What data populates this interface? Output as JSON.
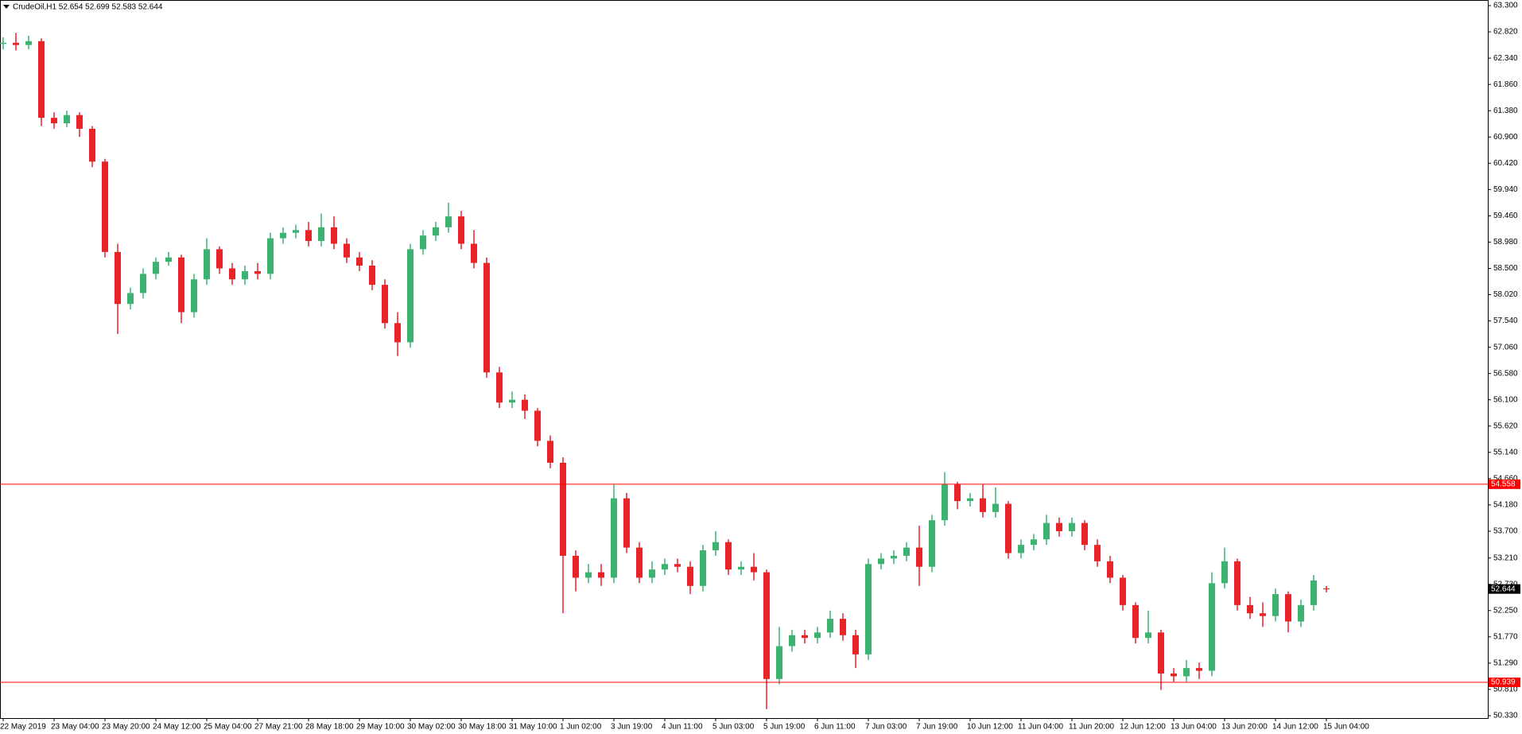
{
  "chart_data": {
    "type": "candlestick",
    "title": "CrudeOil,H1  52.654 52.699 52.583 52.644",
    "up_color": "#3cb371",
    "down_color": "#e8232a",
    "categories": [
      "22 May 2019",
      null,
      null,
      null,
      "23 May 04:00",
      null,
      null,
      null,
      "23 May 20:00",
      null,
      null,
      null,
      "24 May 12:00",
      null,
      null,
      null,
      "25 May 04:00",
      null,
      null,
      null,
      "27 May 21:00",
      null,
      null,
      null,
      "28 May 18:00",
      null,
      null,
      null,
      "29 May 10:00",
      null,
      null,
      null,
      "30 May 02:00",
      null,
      null,
      null,
      "30 May 18:00",
      null,
      null,
      null,
      "31 May 10:00",
      null,
      null,
      null,
      "1 Jun 02:00",
      null,
      null,
      null,
      "3 Jun 19:00",
      null,
      null,
      null,
      "4 Jun 11:00",
      null,
      null,
      null,
      "5 Jun 03:00",
      null,
      null,
      null,
      "5 Jun 19:00",
      null,
      null,
      null,
      "6 Jun 11:00",
      null,
      null,
      null,
      "7 Jun 03:00",
      null,
      null,
      null,
      "7 Jun 19:00",
      null,
      null,
      null,
      "10 Jun 12:00",
      null,
      null,
      null,
      "11 Jun 04:00",
      null,
      null,
      null,
      "11 Jun 20:00",
      null,
      null,
      null,
      "12 Jun 12:00",
      null,
      null,
      null,
      "13 Jun 04:00",
      null,
      null,
      null,
      "13 Jun 20:00",
      null,
      null,
      null,
      "14 Jun 12:00",
      null,
      null,
      null,
      "15 Jun 04:00"
    ],
    "open": [
      62.6,
      62.62,
      62.58,
      62.65,
      61.25,
      61.15,
      61.3,
      61.05,
      60.45,
      58.8,
      57.85,
      58.05,
      58.4,
      58.62,
      58.7,
      57.7,
      58.3,
      58.85,
      58.5,
      58.3,
      58.45,
      58.4,
      59.05,
      59.15,
      59.2,
      59.0,
      59.25,
      58.95,
      58.7,
      58.55,
      58.2,
      57.5,
      57.15,
      58.85,
      59.1,
      59.25,
      59.45,
      58.95,
      58.6,
      56.6,
      56.05,
      56.1,
      55.9,
      55.35,
      54.95,
      53.25,
      52.85,
      52.95,
      52.85,
      54.3,
      53.4,
      52.85,
      53.0,
      53.1,
      53.05,
      52.7,
      53.35,
      53.5,
      53.0,
      53.05,
      52.95,
      51.0,
      51.6,
      51.8,
      51.75,
      51.85,
      52.1,
      51.8,
      51.45,
      53.1,
      53.2,
      53.25,
      53.4,
      53.05,
      53.9,
      54.55,
      54.25,
      54.3,
      54.05,
      54.2,
      53.3,
      53.45,
      53.55,
      53.85,
      53.7,
      53.85,
      53.45,
      53.15,
      52.85,
      52.35,
      51.75,
      51.85,
      51.1,
      51.05,
      51.2,
      51.15,
      52.75,
      53.15,
      52.35,
      52.2,
      52.15,
      52.55,
      52.05,
      52.35,
      52.654
    ],
    "high": [
      62.72,
      62.8,
      62.75,
      62.7,
      61.35,
      61.38,
      61.35,
      61.1,
      60.5,
      58.95,
      58.15,
      58.5,
      58.7,
      58.8,
      58.75,
      58.4,
      59.05,
      58.9,
      58.6,
      58.55,
      58.6,
      59.15,
      59.25,
      59.3,
      59.35,
      59.5,
      59.45,
      59.05,
      58.8,
      58.65,
      58.3,
      57.7,
      58.95,
      59.2,
      59.35,
      59.7,
      59.55,
      59.2,
      58.7,
      56.7,
      56.25,
      56.2,
      55.95,
      55.45,
      55.05,
      53.35,
      53.1,
      53.1,
      54.55,
      54.4,
      53.5,
      53.15,
      53.2,
      53.2,
      53.15,
      53.45,
      53.7,
      53.55,
      53.15,
      53.3,
      53.0,
      51.95,
      51.9,
      51.9,
      51.95,
      52.25,
      52.2,
      51.9,
      53.2,
      53.3,
      53.35,
      53.5,
      53.8,
      54.0,
      54.78,
      54.6,
      54.4,
      54.55,
      54.5,
      54.25,
      53.55,
      53.65,
      54.0,
      53.95,
      53.95,
      53.9,
      53.55,
      53.25,
      52.9,
      52.4,
      52.25,
      51.9,
      51.2,
      51.35,
      51.3,
      52.95,
      53.4,
      53.2,
      52.5,
      52.4,
      52.65,
      52.6,
      52.45,
      52.9,
      52.699
    ],
    "low": [
      62.5,
      62.48,
      62.5,
      61.1,
      61.05,
      61.08,
      60.9,
      60.35,
      58.7,
      57.3,
      57.75,
      57.95,
      58.3,
      58.55,
      57.5,
      57.6,
      58.2,
      58.4,
      58.2,
      58.2,
      58.3,
      58.3,
      58.95,
      59.05,
      58.9,
      58.9,
      58.85,
      58.6,
      58.45,
      58.1,
      57.4,
      56.9,
      57.05,
      58.75,
      59.0,
      59.15,
      58.85,
      58.5,
      56.5,
      55.95,
      55.95,
      55.75,
      55.25,
      54.85,
      52.2,
      52.6,
      52.75,
      52.7,
      52.75,
      53.3,
      52.75,
      52.75,
      52.9,
      52.95,
      52.55,
      52.6,
      53.25,
      52.9,
      52.9,
      52.8,
      50.45,
      50.9,
      51.5,
      51.65,
      51.65,
      51.75,
      51.7,
      51.2,
      51.35,
      53.0,
      53.1,
      53.15,
      52.7,
      52.95,
      53.8,
      54.1,
      54.15,
      53.95,
      53.95,
      53.2,
      53.2,
      53.35,
      53.45,
      53.6,
      53.6,
      53.35,
      53.05,
      52.75,
      52.25,
      51.65,
      51.65,
      50.8,
      50.95,
      50.95,
      51.0,
      51.05,
      52.65,
      52.25,
      52.1,
      51.95,
      52.05,
      51.85,
      51.95,
      52.25,
      52.583
    ],
    "close": [
      62.62,
      62.58,
      62.65,
      61.25,
      61.15,
      61.3,
      61.05,
      60.45,
      58.8,
      57.85,
      58.05,
      58.4,
      58.62,
      58.7,
      57.7,
      58.3,
      58.85,
      58.5,
      58.3,
      58.45,
      58.4,
      59.05,
      59.15,
      59.2,
      59.0,
      59.25,
      58.95,
      58.7,
      58.55,
      58.2,
      57.5,
      57.15,
      58.85,
      59.1,
      59.25,
      59.45,
      58.95,
      58.6,
      56.6,
      56.05,
      56.1,
      55.9,
      55.35,
      54.95,
      53.25,
      52.85,
      52.95,
      52.85,
      54.3,
      53.4,
      52.85,
      53.0,
      53.1,
      53.05,
      52.7,
      53.35,
      53.5,
      53.0,
      53.05,
      52.95,
      51.0,
      51.6,
      51.8,
      51.75,
      51.85,
      52.1,
      51.8,
      51.45,
      53.1,
      53.2,
      53.25,
      53.4,
      53.05,
      53.9,
      54.55,
      54.25,
      54.3,
      54.05,
      54.2,
      53.3,
      53.45,
      53.55,
      53.85,
      53.7,
      53.85,
      53.45,
      53.15,
      52.85,
      52.35,
      51.75,
      51.85,
      51.1,
      51.05,
      51.2,
      51.15,
      52.75,
      53.15,
      52.35,
      52.2,
      52.15,
      52.55,
      52.05,
      52.35,
      52.8,
      52.644
    ],
    "ylim": [
      50.286,
      63.402
    ],
    "yticks": [
      {
        "value": 63.3,
        "label": "63.300"
      },
      {
        "value": 62.82,
        "label": "62.820"
      },
      {
        "value": 62.34,
        "label": "62.340"
      },
      {
        "value": 61.86,
        "label": "61.860"
      },
      {
        "value": 61.38,
        "label": "61.380"
      },
      {
        "value": 60.9,
        "label": "60.900"
      },
      {
        "value": 60.42,
        "label": "60.420"
      },
      {
        "value": 59.94,
        "label": "59.940"
      },
      {
        "value": 59.46,
        "label": "59.460"
      },
      {
        "value": 58.98,
        "label": "58.980"
      },
      {
        "value": 58.5,
        "label": "58.500"
      },
      {
        "value": 58.02,
        "label": "58.020"
      },
      {
        "value": 57.54,
        "label": "57.540"
      },
      {
        "value": 57.06,
        "label": "57.060"
      },
      {
        "value": 56.58,
        "label": "56.580"
      },
      {
        "value": 56.1,
        "label": "56.100"
      },
      {
        "value": 55.62,
        "label": "55.620"
      },
      {
        "value": 55.14,
        "label": "55.140"
      },
      {
        "value": 54.66,
        "label": "54.660"
      },
      {
        "value": 54.18,
        "label": "54.180"
      },
      {
        "value": 53.7,
        "label": "53.700"
      },
      {
        "value": 53.21,
        "label": "53.210"
      },
      {
        "value": 52.73,
        "label": "52.730"
      },
      {
        "value": 52.25,
        "label": "52.250"
      },
      {
        "value": 51.77,
        "label": "51.770"
      },
      {
        "value": 51.29,
        "label": "51.290"
      },
      {
        "value": 50.81,
        "label": "50.810"
      },
      {
        "value": 50.33,
        "label": "50.330"
      }
    ],
    "hlines": [
      {
        "value": 54.558,
        "label": "54.558",
        "color": "#ff0000"
      },
      {
        "value": 50.939,
        "label": "50.939",
        "color": "#ff0000"
      }
    ],
    "current_price": {
      "value": 52.644,
      "label": "52.644",
      "color": "#000000"
    }
  }
}
